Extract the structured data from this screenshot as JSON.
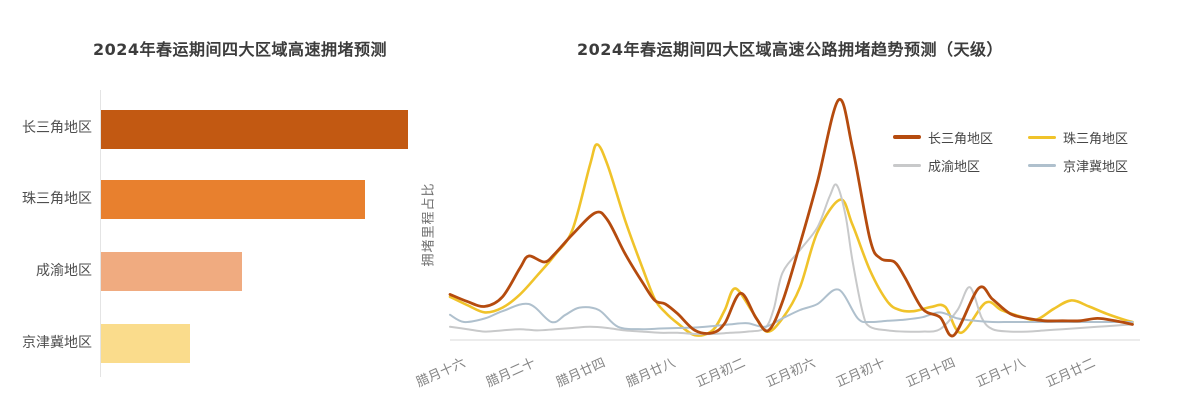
{
  "chart_data": [
    {
      "type": "bar",
      "title": "2024年春运期间四大区域高速拥堵预测",
      "orientation": "horizontal",
      "categories": [
        "长三角地区",
        "珠三角地区",
        "成渝地区",
        "京津冀地区"
      ],
      "values": [
        100,
        86,
        46,
        29
      ],
      "values_note": "relative bar lengths; no numeric axis shown in image",
      "colors": [
        "#c25912",
        "#e8802e",
        "#f0ab80",
        "#fadc8c"
      ],
      "axis_color": "#e4e4e4"
    },
    {
      "type": "line",
      "title": "2024年春运期间四大区域高速公路拥堵趋势预测（天级）",
      "ylabel": "拥堵里程占比",
      "x_tick_labels": [
        "腊月十六",
        "腊月二十",
        "腊月廿四",
        "腊月廿八",
        "正月初二",
        "正月初六",
        "正月初十",
        "正月十四",
        "正月十八",
        "正月廿二"
      ],
      "x_tick_day_index": [
        0,
        4,
        8,
        12,
        16,
        20,
        24,
        28,
        32,
        36
      ],
      "ylim": [
        0,
        105
      ],
      "grid": false,
      "legend_position": "top-right",
      "axis_color": "#d9d9d9",
      "series": [
        {
          "name": "长三角地区",
          "color": "#b54b0e",
          "line_width": 2.8,
          "points": [
            [
              0,
              19
            ],
            [
              1,
              16
            ],
            [
              2,
              14
            ],
            [
              3,
              18
            ],
            [
              4,
              30
            ],
            [
              4.5,
              35
            ],
            [
              5.4,
              32.5
            ],
            [
              6,
              36
            ],
            [
              7,
              44
            ],
            [
              8.3,
              53
            ],
            [
              9,
              50
            ],
            [
              10,
              36
            ],
            [
              11,
              24
            ],
            [
              11.7,
              16.5
            ],
            [
              12.3,
              15
            ],
            [
              13,
              11
            ],
            [
              14,
              4
            ],
            [
              15,
              3
            ],
            [
              15.7,
              7
            ],
            [
              16.6,
              19.5
            ],
            [
              17.5,
              9
            ],
            [
              18.2,
              4
            ],
            [
              19,
              16
            ],
            [
              20,
              40
            ],
            [
              21,
              66
            ],
            [
              22.2,
              100
            ],
            [
              23,
              80
            ],
            [
              24,
              42
            ],
            [
              24.6,
              34
            ],
            [
              25.4,
              32.5
            ],
            [
              26,
              26
            ],
            [
              27,
              13
            ],
            [
              28,
              9.5
            ],
            [
              28.8,
              2
            ],
            [
              30.2,
              21.5
            ],
            [
              31,
              17
            ],
            [
              32,
              11
            ],
            [
              33,
              9
            ],
            [
              34,
              8
            ],
            [
              35,
              8
            ],
            [
              36,
              8
            ],
            [
              37,
              9
            ],
            [
              38,
              8
            ],
            [
              39,
              6.5
            ]
          ]
        },
        {
          "name": "珠三角地区",
          "color": "#f0c32a",
          "line_width": 2.6,
          "points": [
            [
              0,
              18
            ],
            [
              1,
              14.5
            ],
            [
              2,
              11.5
            ],
            [
              3,
              13.5
            ],
            [
              4,
              19
            ],
            [
              5,
              27
            ],
            [
              6,
              35.5
            ],
            [
              7,
              46
            ],
            [
              8,
              73
            ],
            [
              8.4,
              81.5
            ],
            [
              9,
              73
            ],
            [
              10,
              50
            ],
            [
              11,
              30
            ],
            [
              11.7,
              17
            ],
            [
              12.3,
              11.5
            ],
            [
              13,
              7
            ],
            [
              14,
              2
            ],
            [
              15,
              4
            ],
            [
              15.7,
              12.5
            ],
            [
              16.3,
              21.5
            ],
            [
              17.3,
              11.5
            ],
            [
              18.1,
              3.5
            ],
            [
              19,
              9
            ],
            [
              20,
              22
            ],
            [
              21,
              45
            ],
            [
              22.3,
              58.5
            ],
            [
              23,
              48
            ],
            [
              24,
              29
            ],
            [
              25,
              16
            ],
            [
              25.7,
              12.5
            ],
            [
              26.5,
              12
            ],
            [
              27.5,
              13.8
            ],
            [
              28.3,
              13.8
            ],
            [
              29.2,
              3
            ],
            [
              30.6,
              15.5
            ],
            [
              31.5,
              12.5
            ],
            [
              32.5,
              10
            ],
            [
              33.5,
              8.5
            ],
            [
              34.5,
              13
            ],
            [
              35.5,
              16.5
            ],
            [
              36.5,
              14
            ],
            [
              37.5,
              11
            ],
            [
              38.5,
              8.5
            ],
            [
              39,
              7.5
            ]
          ]
        },
        {
          "name": "成渝地区",
          "color": "#c8c9ca",
          "line_width": 2,
          "points": [
            [
              0,
              5.5
            ],
            [
              1,
              4.5
            ],
            [
              2,
              3.5
            ],
            [
              3,
              4
            ],
            [
              4,
              4.5
            ],
            [
              5,
              4
            ],
            [
              6,
              4.5
            ],
            [
              7,
              5
            ],
            [
              8,
              5.5
            ],
            [
              9,
              5
            ],
            [
              10,
              4
            ],
            [
              11,
              3.5
            ],
            [
              12,
              3
            ],
            [
              13,
              3
            ],
            [
              14,
              2.5
            ],
            [
              15,
              2.5
            ],
            [
              16,
              3
            ],
            [
              17,
              3.5
            ],
            [
              18,
              5
            ],
            [
              18.5,
              13
            ],
            [
              19,
              28
            ],
            [
              20,
              37.5
            ],
            [
              21,
              47
            ],
            [
              21.7,
              60
            ],
            [
              22.1,
              64.5
            ],
            [
              22.6,
              52
            ],
            [
              23,
              33
            ],
            [
              23.6,
              11
            ],
            [
              24,
              5.5
            ],
            [
              25,
              4
            ],
            [
              26,
              3.5
            ],
            [
              27,
              3.5
            ],
            [
              28,
              4.5
            ],
            [
              29,
              12.5
            ],
            [
              29.7,
              22
            ],
            [
              30.4,
              9
            ],
            [
              31,
              4.5
            ],
            [
              32,
              3.5
            ],
            [
              33,
              3.5
            ],
            [
              34,
              4
            ],
            [
              35,
              4.5
            ],
            [
              36,
              5
            ],
            [
              37,
              5.5
            ],
            [
              38,
              6
            ],
            [
              39,
              6.5
            ]
          ]
        },
        {
          "name": "京津冀地区",
          "color": "#afc0cd",
          "line_width": 2,
          "points": [
            [
              0,
              10.5
            ],
            [
              0.8,
              7.5
            ],
            [
              2,
              9
            ],
            [
              3,
              12
            ],
            [
              4.5,
              15
            ],
            [
              5.8,
              7.5
            ],
            [
              6.6,
              10.5
            ],
            [
              7.4,
              13.5
            ],
            [
              8.5,
              12.5
            ],
            [
              9.6,
              5.5
            ],
            [
              11,
              4.5
            ],
            [
              12,
              4.8
            ],
            [
              13,
              5
            ],
            [
              14,
              5.2
            ],
            [
              15,
              5.8
            ],
            [
              16,
              6.5
            ],
            [
              17,
              7
            ],
            [
              18,
              5.5
            ],
            [
              19,
              9
            ],
            [
              20,
              12.5
            ],
            [
              21,
              15
            ],
            [
              22.2,
              21
            ],
            [
              23.3,
              9
            ],
            [
              24,
              7.5
            ],
            [
              25,
              8
            ],
            [
              26,
              8.5
            ],
            [
              27,
              9.5
            ],
            [
              28,
              11.5
            ],
            [
              29,
              9
            ],
            [
              30,
              8
            ],
            [
              31,
              7.5
            ],
            [
              32,
              7.5
            ],
            [
              33,
              7.5
            ],
            [
              34,
              7.5
            ],
            [
              35,
              7.5
            ],
            [
              36,
              7.5
            ],
            [
              37,
              7.5
            ],
            [
              38,
              7.5
            ],
            [
              39,
              7.5
            ]
          ]
        }
      ]
    }
  ]
}
